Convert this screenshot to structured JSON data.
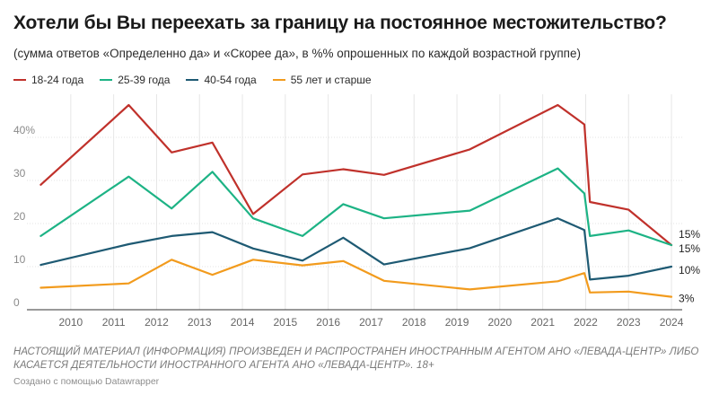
{
  "title": "Хотели бы Вы переехать за границу на постоянное местожительство?",
  "subtitle": "(сумма ответов «Определенно да» и «Скорее да», в %% опрошенных по каждой возрастной группе)",
  "notes": "НАСТОЯЩИЙ МАТЕРИАЛ (ИНФОРМАЦИЯ) ПРОИЗВЕДЕН И РАСПРОСТРАНЕН ИНОСТРАННЫМ АГЕНТОМ АНО «ЛЕВАДА-ЦЕНТР» ЛИБО КАСАЕТСЯ ДЕЯТЕЛЬНОСТИ ИНОСТРАННОГО АГЕНТА АНО «ЛЕВАДА-ЦЕНТР». 18+",
  "credit": "Создано с помощью Datawrapper",
  "chart_data": {
    "type": "line",
    "title": "Хотели бы Вы переехать за границу на постоянное местожительство?",
    "xlabel": "",
    "ylabel": "",
    "xlim": [
      2009.25,
      2024.25
    ],
    "ylim": [
      0,
      50
    ],
    "y_ticks": [
      {
        "value": 0,
        "label": "0"
      },
      {
        "value": 10,
        "label": "10"
      },
      {
        "value": 20,
        "label": "20"
      },
      {
        "value": 30,
        "label": "30"
      },
      {
        "value": 40,
        "label": "40%"
      }
    ],
    "x_ticks": [
      2010,
      2011,
      2012,
      2013,
      2014,
      2015,
      2016,
      2017,
      2018,
      2019,
      2020,
      2021,
      2022,
      2023,
      2024
    ],
    "grid": true,
    "series": [
      {
        "name": "18-24 года",
        "color": "#c0312b",
        "end_label": "15%",
        "x": [
          2009.3,
          2011.35,
          2012.35,
          2013.3,
          2014.25,
          2015.4,
          2016.35,
          2017.3,
          2019.3,
          2021.35,
          2021.97,
          2022.1,
          2023.0,
          2024.0
        ],
        "y": [
          29,
          47.5,
          36.5,
          38.8,
          22.2,
          31.4,
          32.6,
          31.3,
          37.2,
          47.5,
          43.0,
          25.0,
          23.2,
          15.0
        ]
      },
      {
        "name": "25-39 года",
        "color": "#1db385",
        "end_label": "15%",
        "x": [
          2009.3,
          2011.35,
          2012.35,
          2013.3,
          2014.25,
          2015.4,
          2016.35,
          2017.3,
          2019.3,
          2021.35,
          2021.97,
          2022.1,
          2023.0,
          2024.0
        ],
        "y": [
          17.1,
          30.9,
          23.5,
          32.0,
          21.2,
          17.1,
          24.5,
          21.2,
          23.0,
          32.8,
          27.0,
          17.1,
          18.4,
          15.0
        ]
      },
      {
        "name": "40-54 года",
        "color": "#1e5a73",
        "end_label": "10%",
        "x": [
          2009.3,
          2011.35,
          2012.35,
          2013.3,
          2014.25,
          2015.4,
          2016.35,
          2017.3,
          2019.3,
          2021.35,
          2021.97,
          2022.1,
          2023.0,
          2024.0
        ],
        "y": [
          10.4,
          15.2,
          17.1,
          18.0,
          14.2,
          11.4,
          16.7,
          10.5,
          14.3,
          21.2,
          18.5,
          7.0,
          7.9,
          10.0
        ]
      },
      {
        "name": "55 лет и старше",
        "color": "#f29b1d",
        "end_label": "3%",
        "x": [
          2009.3,
          2011.35,
          2012.35,
          2013.3,
          2014.25,
          2015.4,
          2016.35,
          2017.3,
          2019.3,
          2021.35,
          2021.97,
          2022.1,
          2023.0,
          2024.0
        ],
        "y": [
          5.1,
          6.1,
          11.6,
          8.1,
          11.6,
          10.3,
          11.3,
          6.7,
          4.7,
          6.6,
          8.5,
          4.0,
          4.2,
          3.0
        ]
      }
    ]
  }
}
